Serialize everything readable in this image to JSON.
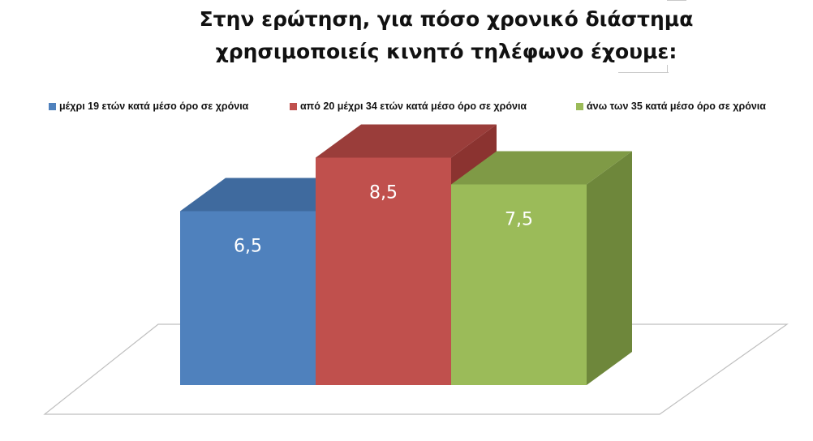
{
  "chart_data": {
    "type": "bar",
    "title": [
      "Στην ερώτηση, για πόσο χρονικό διάστημα",
      "χρησιμοποιείς κινητό τηλέφωνο έχουμε:"
    ],
    "categories": [
      ""
    ],
    "series": [
      {
        "name": "μέχρι 19 ετών κατά μέσο όρο σε χρόνια",
        "values": [
          6.5
        ],
        "label": "6,5",
        "color": "#4f81bd",
        "side": "#385d8a",
        "top": "#3f6a9e"
      },
      {
        "name": "από 20 μέχρι 34  ετών κατά μέσο όρο σε χρόνια",
        "values": [
          8.5
        ],
        "label": "8,5",
        "color": "#c0504d",
        "side": "#8b3330",
        "top": "#9a3d3a"
      },
      {
        "name": "άνω των 35 κατά μέσο όρο σε χρόνια",
        "values": [
          7.5
        ],
        "label": "7,5",
        "color": "#9bbb59",
        "side": "#6e873b",
        "top": "#7f9a46"
      }
    ],
    "style": "3d-column",
    "legend_position": "top",
    "grid": false
  }
}
